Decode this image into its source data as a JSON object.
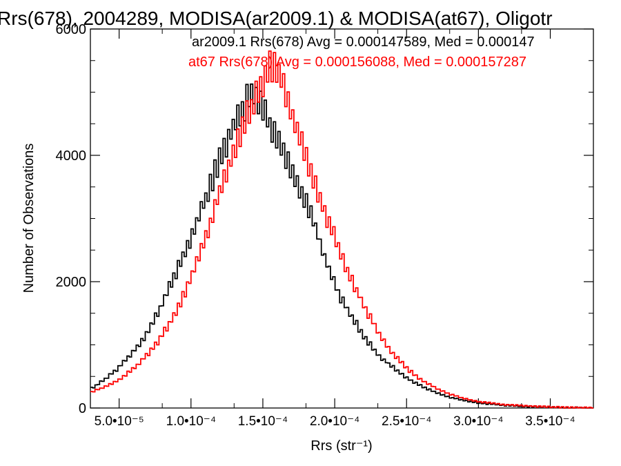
{
  "chart_data": {
    "type": "line",
    "title": "Rrs(678), 2004289, MODISA(ar2009.1) & MODISA(at67), Oligotr",
    "xlabel": "Rrs (str⁻¹)",
    "ylabel": "Number of Observations",
    "xlim": [
      3e-05,
      0.00038
    ],
    "ylim": [
      0,
      6000
    ],
    "x_ticks": [
      {
        "value": 5e-05,
        "label": "5.0•10⁻⁵"
      },
      {
        "value": 0.0001,
        "label": "1.0•10⁻⁴"
      },
      {
        "value": 0.00015,
        "label": "1.5•10⁻⁴"
      },
      {
        "value": 0.0002,
        "label": "2.0•10⁻⁴"
      },
      {
        "value": 0.00025,
        "label": "2.5•10⁻⁴"
      },
      {
        "value": 0.0003,
        "label": "3.0•10⁻⁴"
      },
      {
        "value": 0.00035,
        "label": "3.5•10⁻⁴"
      }
    ],
    "y_ticks": [
      {
        "value": 0,
        "label": "0"
      },
      {
        "value": 2000,
        "label": "2000"
      },
      {
        "value": 4000,
        "label": "4000"
      },
      {
        "value": 6000,
        "label": "6000"
      }
    ],
    "grid": false,
    "legend": "top-right",
    "series": [
      {
        "name": "ar2009.1",
        "color": "#000000",
        "legend_text": "ar2009.1 Rrs(678) Avg = 0.000147589, Med = 0.000147",
        "x": [
          3e-05,
          4e-05,
          5e-05,
          6e-05,
          7e-05,
          8e-05,
          9e-05,
          0.0001,
          0.00011,
          0.00012,
          0.00013,
          0.00014,
          0.000145,
          0.00015,
          0.000155,
          0.00016,
          0.00017,
          0.00018,
          0.00019,
          0.0002,
          0.00021,
          0.00022,
          0.00023,
          0.00024,
          0.00025,
          0.00026,
          0.00027,
          0.00028,
          0.00029,
          0.0003,
          0.00032,
          0.00034,
          0.00036,
          0.00038
        ],
        "y": [
          300,
          450,
          650,
          900,
          1200,
          1650,
          2150,
          2700,
          3300,
          3950,
          4500,
          4900,
          5000,
          4800,
          4500,
          4200,
          3800,
          3300,
          2600,
          1950,
          1500,
          1150,
          850,
          650,
          480,
          350,
          250,
          170,
          120,
          80,
          40,
          20,
          8,
          5
        ]
      },
      {
        "name": "at67",
        "color": "#ff0000",
        "legend_text": "at67 Rrs(678) Avg = 0.000156088, Med = 0.000157287",
        "x": [
          3e-05,
          4e-05,
          5e-05,
          6e-05,
          7e-05,
          8e-05,
          9e-05,
          0.0001,
          0.00011,
          0.00012,
          0.00013,
          0.00014,
          0.00015,
          0.000155,
          0.00016,
          0.000165,
          0.00017,
          0.00018,
          0.00019,
          0.0002,
          0.00021,
          0.00022,
          0.00023,
          0.00024,
          0.00025,
          0.00026,
          0.00027,
          0.00028,
          0.00029,
          0.0003,
          0.00032,
          0.00034,
          0.00036,
          0.00038
        ],
        "y": [
          250,
          330,
          450,
          620,
          850,
          1150,
          1550,
          2050,
          2700,
          3400,
          4100,
          4700,
          5100,
          5400,
          5300,
          5100,
          4700,
          4000,
          3300,
          2700,
          2100,
          1650,
          1200,
          880,
          630,
          450,
          320,
          220,
          150,
          100,
          50,
          25,
          10,
          5
        ]
      }
    ]
  }
}
